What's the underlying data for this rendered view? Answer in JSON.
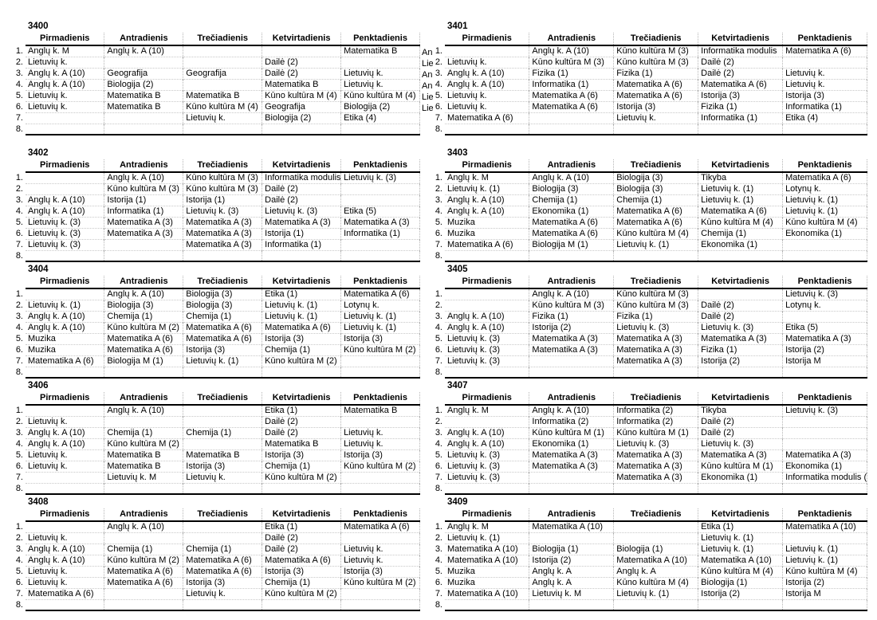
{
  "page": {
    "days": [
      "Pirmadienis",
      "Antradienis",
      "Trečiadienis",
      "Ketvirtadienis",
      "Penktadienis"
    ],
    "row_numbers": [
      "1.",
      "2.",
      "3.",
      "4.",
      "5.",
      "6.",
      "7.",
      "8."
    ],
    "colors": {
      "text": "#000000",
      "header_rule": "#000000",
      "grid_line": "#b5b5b5"
    }
  },
  "timetables": [
    {
      "id": "3400",
      "overflow_right": [
        "An",
        "Lie",
        "An",
        "An",
        "Lie",
        "Lie",
        "",
        ""
      ],
      "rows": [
        [
          "Anglų k. M",
          "Anglų k. A (10)",
          "",
          "",
          "Matematika B"
        ],
        [
          "Lietuvių k.",
          "",
          "",
          "Dailė (2)",
          ""
        ],
        [
          "Anglų k. A (10)",
          "Geografija",
          "Geografija",
          "Dailė (2)",
          "Lietuvių k."
        ],
        [
          "Anglų k. A (10)",
          "Biologija (2)",
          "",
          "Matematika B",
          "Lietuvių k."
        ],
        [
          "Lietuvių k.",
          "Matematika B",
          "Matematika B",
          "Kūno kultūra M (4)",
          "Kūno kultūra M (4)"
        ],
        [
          "Lietuvių k.",
          "Matematika B",
          "Kūno kultūra M (4)",
          "Geografija",
          "Biologija (2)"
        ],
        [
          "",
          "",
          "Lietuvių k.",
          "Biologija (2)",
          "Etika (4)"
        ],
        [
          "",
          "",
          "",
          "",
          ""
        ]
      ]
    },
    {
      "id": "3401",
      "rows": [
        [
          "",
          "Anglų k. A (10)",
          "Kūno kultūra M (3)",
          "Informatika modulis",
          "Matematika A (6)"
        ],
        [
          "Lietuvių k.",
          "Kūno kultūra M (3)",
          "Kūno kultūra M (3)",
          "Dailė (2)",
          ""
        ],
        [
          "Anglų k. A (10)",
          "Fizika (1)",
          "Fizika (1)",
          "Dailė (2)",
          "Lietuvių k."
        ],
        [
          "Anglų k. A (10)",
          "Informatika (1)",
          "Matematika A (6)",
          "Matematika A (6)",
          "Lietuvių k."
        ],
        [
          "Lietuvių k.",
          "Matematika A (6)",
          "Matematika A (6)",
          "Istorija (3)",
          "Istorija (3)"
        ],
        [
          "Lietuvių k.",
          "Matematika A (6)",
          "Istorija (3)",
          "Fizika (1)",
          "Informatika (1)"
        ],
        [
          "Matematika A (6)",
          "",
          "Lietuvių k.",
          "Informatika (1)",
          "Etika (4)"
        ],
        [
          "",
          "",
          "",
          "",
          ""
        ]
      ]
    },
    {
      "id": "3402",
      "rows": [
        [
          "",
          "Anglų k. A (10)",
          "Kūno kultūra M (3)",
          "Informatika modulis",
          "Lietuvių k. (3)"
        ],
        [
          "",
          "Kūno kultūra M (3)",
          "Kūno kultūra M (3)",
          "Dailė (2)",
          ""
        ],
        [
          "Anglų k. A (10)",
          "Istorija (1)",
          "Istorija (1)",
          "Dailė (2)",
          ""
        ],
        [
          "Anglų k. A (10)",
          "Informatika (1)",
          "Lietuvių k. (3)",
          "Lietuvių k. (3)",
          "Etika (5)"
        ],
        [
          "Lietuvių k. (3)",
          "Matematika A (3)",
          "Matematika A (3)",
          "Matematika A (3)",
          "Matematika A (3)"
        ],
        [
          "Lietuvių k. (3)",
          "Matematika A (3)",
          "Matematika A (3)",
          "Istorija (1)",
          "Informatika (1)"
        ],
        [
          "Lietuvių k. (3)",
          "",
          "Matematika A (3)",
          "Informatika (1)",
          ""
        ],
        [
          "",
          "",
          "",
          "",
          ""
        ]
      ]
    },
    {
      "id": "3403",
      "rows": [
        [
          "Anglų k. M",
          "Anglų k. A (10)",
          "Biologija (3)",
          "Tikyba",
          "Matematika A (6)"
        ],
        [
          "Lietuvių k. (1)",
          "Biologija (3)",
          "Biologija (3)",
          "Lietuvių k. (1)",
          "Lotynų k."
        ],
        [
          "Anglų k. A (10)",
          "Chemija (1)",
          "Chemija (1)",
          "Lietuvių k. (1)",
          "Lietuvių k. (1)"
        ],
        [
          "Anglų k. A (10)",
          "Ekonomika (1)",
          "Matematika A (6)",
          "Matematika A (6)",
          "Lietuvių k. (1)"
        ],
        [
          "Muzika",
          "Matematika A (6)",
          "Matematika A (6)",
          "Kūno kultūra M (4)",
          "Kūno kultūra M (4)"
        ],
        [
          "Muzika",
          "Matematika A (6)",
          "Kūno kultūra M (4)",
          "Chemija (1)",
          "Ekonomika (1)"
        ],
        [
          "Matematika A (6)",
          "Biologija M (1)",
          "Lietuvių k. (1)",
          "Ekonomika (1)",
          ""
        ],
        [
          "",
          "",
          "",
          "",
          ""
        ]
      ]
    },
    {
      "id": "3404",
      "rows": [
        [
          "",
          "Anglų k. A (10)",
          "Biologija (3)",
          "Etika (1)",
          "Matematika A (6)"
        ],
        [
          "Lietuvių k. (1)",
          "Biologija (3)",
          "Biologija (3)",
          "Lietuvių k. (1)",
          "Lotynų k."
        ],
        [
          "Anglų k. A (10)",
          "Chemija (1)",
          "Chemija (1)",
          "Lietuvių k. (1)",
          "Lietuvių k. (1)"
        ],
        [
          "Anglų k. A (10)",
          "Kūno kultūra M (2)",
          "Matematika A (6)",
          "Matematika A (6)",
          "Lietuvių k. (1)"
        ],
        [
          "Muzika",
          "Matematika A (6)",
          "Matematika A (6)",
          "Istorija (3)",
          "Istorija (3)"
        ],
        [
          "Muzika",
          "Matematika A (6)",
          "Istorija (3)",
          "Chemija (1)",
          "Kūno kultūra M (2)"
        ],
        [
          "Matematika A (6)",
          "Biologija M (1)",
          "Lietuvių k. (1)",
          "Kūno kultūra M (2)",
          ""
        ],
        [
          "",
          "",
          "",
          "",
          ""
        ]
      ]
    },
    {
      "id": "3405",
      "rows": [
        [
          "",
          "Anglų k. A (10)",
          "Kūno kultūra M (3)",
          "",
          "Lietuvių k. (3)"
        ],
        [
          "",
          "Kūno kultūra M (3)",
          "Kūno kultūra M (3)",
          "Dailė (2)",
          "Lotynų k."
        ],
        [
          "Anglų k. A (10)",
          "Fizika (1)",
          "Fizika (1)",
          "Dailė (2)",
          ""
        ],
        [
          "Anglų k. A (10)",
          "Istorija (2)",
          "Lietuvių k. (3)",
          "Lietuvių k. (3)",
          "Etika (5)"
        ],
        [
          "Lietuvių k. (3)",
          "Matematika A (3)",
          "Matematika A (3)",
          "Matematika A (3)",
          "Matematika A (3)"
        ],
        [
          "Lietuvių k. (3)",
          "Matematika A (3)",
          "Matematika A (3)",
          "Fizika (1)",
          "Istorija (2)"
        ],
        [
          "Lietuvių k. (3)",
          "",
          "Matematika A (3)",
          "Istorija (2)",
          "Istorija M"
        ],
        [
          "",
          "",
          "",
          "",
          ""
        ]
      ]
    },
    {
      "id": "3406",
      "rows": [
        [
          "",
          "Anglų k. A (10)",
          "",
          "Etika (1)",
          "Matematika B"
        ],
        [
          "Lietuvių k.",
          "",
          "",
          "Dailė (2)",
          ""
        ],
        [
          "Anglų k. A (10)",
          "Chemija (1)",
          "Chemija (1)",
          "Dailė (2)",
          "Lietuvių k."
        ],
        [
          "Anglų k. A (10)",
          "Kūno kultūra M (2)",
          "",
          "Matematika B",
          "Lietuvių k."
        ],
        [
          "Lietuvių k.",
          "Matematika B",
          "Matematika B",
          "Istorija (3)",
          "Istorija (3)"
        ],
        [
          "Lietuvių k.",
          "Matematika B",
          "Istorija (3)",
          "Chemija (1)",
          "Kūno kultūra M (2)"
        ],
        [
          "",
          "Lietuvių k. M",
          "Lietuvių k.",
          "Kūno kultūra M (2)",
          ""
        ],
        [
          "",
          "",
          "",
          "",
          ""
        ]
      ]
    },
    {
      "id": "3407",
      "rows": [
        [
          "Anglų k. M",
          "Anglų k. A (10)",
          "Informatika (2)",
          "Tikyba",
          "Lietuvių k. (3)"
        ],
        [
          "",
          "Informatika (2)",
          "Informatika (2)",
          "Dailė (2)",
          ""
        ],
        [
          "Anglų k. A (10)",
          "Kūno kultūra M (1)",
          "Kūno kultūra M (1)",
          "Dailė (2)",
          ""
        ],
        [
          "Anglų k. A (10)",
          "Ekonomika (1)",
          "Lietuvių k. (3)",
          "Lietuvių k. (3)",
          ""
        ],
        [
          "Lietuvių k. (3)",
          "Matematika A (3)",
          "Matematika A (3)",
          "Matematika A (3)",
          "Matematika A (3)"
        ],
        [
          "Lietuvių k. (3)",
          "Matematika A (3)",
          "Matematika A (3)",
          "Kūno kultūra M (1)",
          "Ekonomika (1)"
        ],
        [
          "Lietuvių k. (3)",
          "",
          "Matematika A (3)",
          "Ekonomika (1)",
          "Informatika modulis ("
        ],
        [
          "",
          "",
          "",
          "",
          ""
        ]
      ]
    },
    {
      "id": "3408",
      "rows": [
        [
          "",
          "Anglų k. A (10)",
          "",
          "Etika (1)",
          "Matematika A (6)"
        ],
        [
          "Lietuvių k.",
          "",
          "",
          "Dailė (2)",
          ""
        ],
        [
          "Anglų k. A (10)",
          "Chemija (1)",
          "Chemija (1)",
          "Dailė (2)",
          "Lietuvių k."
        ],
        [
          "Anglų k. A (10)",
          "Kūno kultūra M (2)",
          "Matematika A (6)",
          "Matematika A (6)",
          "Lietuvių k."
        ],
        [
          "Lietuvių k.",
          "Matematika A (6)",
          "Matematika A (6)",
          "Istorija (3)",
          "Istorija (3)"
        ],
        [
          "Lietuvių k.",
          "Matematika A (6)",
          "Istorija (3)",
          "Chemija (1)",
          "Kūno kultūra M (2)"
        ],
        [
          "Matematika A (6)",
          "",
          "Lietuvių k.",
          "Kūno kultūra M (2)",
          ""
        ],
        [
          "",
          "",
          "",
          "",
          ""
        ]
      ]
    },
    {
      "id": "3409",
      "rows": [
        [
          "Anglų k. M",
          "Matematika A (10)",
          "",
          "Etika (1)",
          "Matematika A (10)"
        ],
        [
          "Lietuvių k. (1)",
          "",
          "",
          "Lietuvių k. (1)",
          ""
        ],
        [
          "Matematika A (10)",
          "Biologija (1)",
          "Biologija (1)",
          "Lietuvių k. (1)",
          "Lietuvių k. (1)"
        ],
        [
          "Matematika A (10)",
          "Istorija (2)",
          "Matematika A (10)",
          "Matematika A (10)",
          "Lietuvių k. (1)"
        ],
        [
          "Muzika",
          "Anglų k. A",
          "Anglų k. A",
          "Kūno kultūra M (4)",
          "Kūno kultūra M (4)"
        ],
        [
          "Muzika",
          "Anglų k. A",
          "Kūno kultūra M (4)",
          "Biologija (1)",
          "Istorija (2)"
        ],
        [
          "Matematika A (10)",
          "Lietuvių k. M",
          "Lietuvių k. (1)",
          "Istorija (2)",
          "Istorija M"
        ],
        [
          "",
          "",
          "",
          "",
          ""
        ]
      ]
    }
  ]
}
